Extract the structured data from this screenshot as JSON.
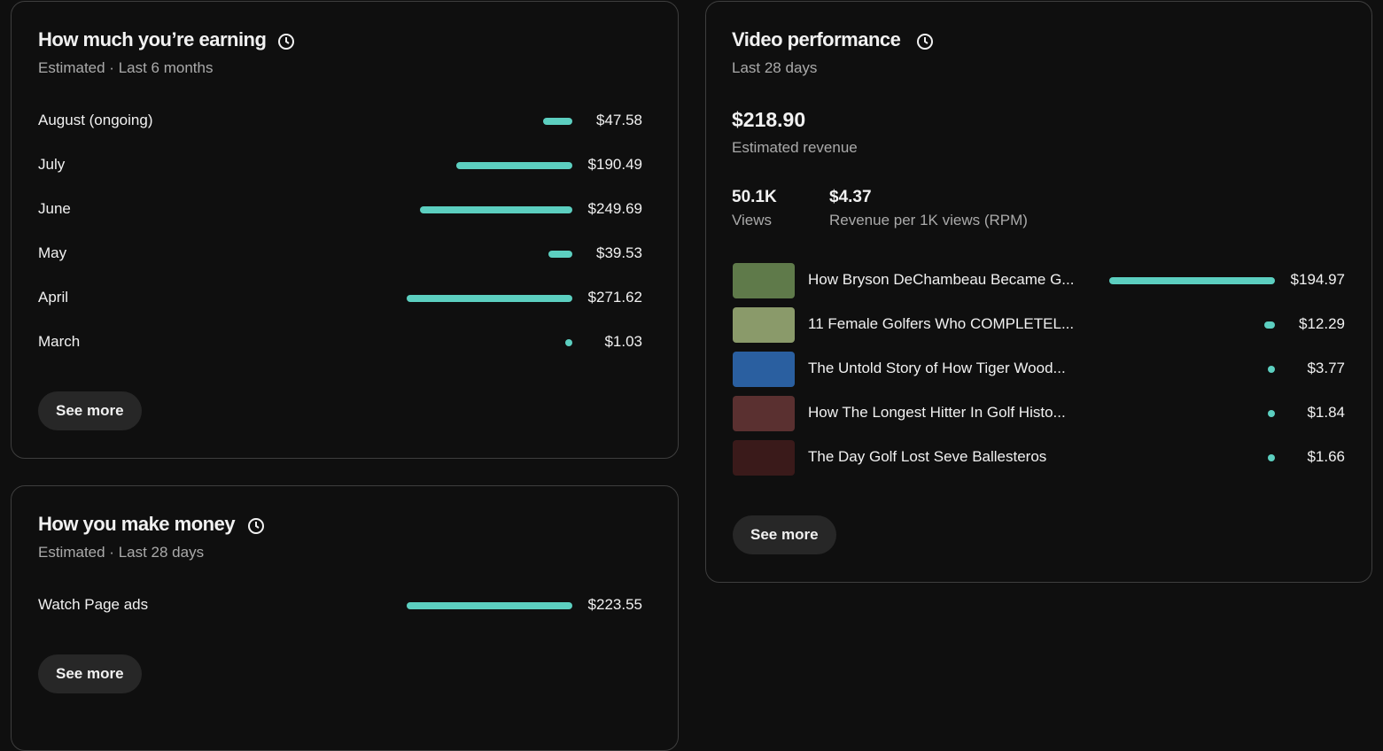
{
  "earnings": {
    "title": "How much you’re earning",
    "subtitle": "Estimated · Last 6 months",
    "rows": [
      {
        "label": "August (ongoing)",
        "value": 47.58,
        "value_label": "$47.58"
      },
      {
        "label": "July",
        "value": 190.49,
        "value_label": "$190.49"
      },
      {
        "label": "June",
        "value": 249.69,
        "value_label": "$249.69"
      },
      {
        "label": "May",
        "value": 39.53,
        "value_label": "$39.53"
      },
      {
        "label": "April",
        "value": 271.62,
        "value_label": "$271.62"
      },
      {
        "label": "March",
        "value": 1.03,
        "value_label": "$1.03"
      }
    ],
    "button": "See more"
  },
  "money": {
    "title": "How you make money",
    "subtitle": "Estimated · Last 28 days",
    "rows": [
      {
        "label": "Watch Page ads",
        "value": 223.55,
        "value_label": "$223.55"
      }
    ],
    "button": "See more"
  },
  "video": {
    "title": "Video performance",
    "subtitle": "Last 28 days",
    "revenue": {
      "value": "$218.90",
      "label": "Estimated revenue"
    },
    "stats": [
      {
        "value": "50.1K",
        "label": "Views"
      },
      {
        "value": "$4.37",
        "label": "Revenue per 1K views (RPM)"
      }
    ],
    "rows": [
      {
        "label": "How Bryson DeChambeau Became G...",
        "value": 194.97,
        "value_label": "$194.97"
      },
      {
        "label": "11 Female Golfers Who COMPLETEL...",
        "value": 12.29,
        "value_label": "$12.29"
      },
      {
        "label": "The Untold Story of How Tiger Wood...",
        "value": 3.77,
        "value_label": "$3.77"
      },
      {
        "label": "How The Longest Hitter In Golf Histo...",
        "value": 1.84,
        "value_label": "$1.84"
      },
      {
        "label": "The Day Golf Lost Seve Ballesteros",
        "value": 1.66,
        "value_label": "$1.66"
      }
    ],
    "button": "See more"
  }
}
